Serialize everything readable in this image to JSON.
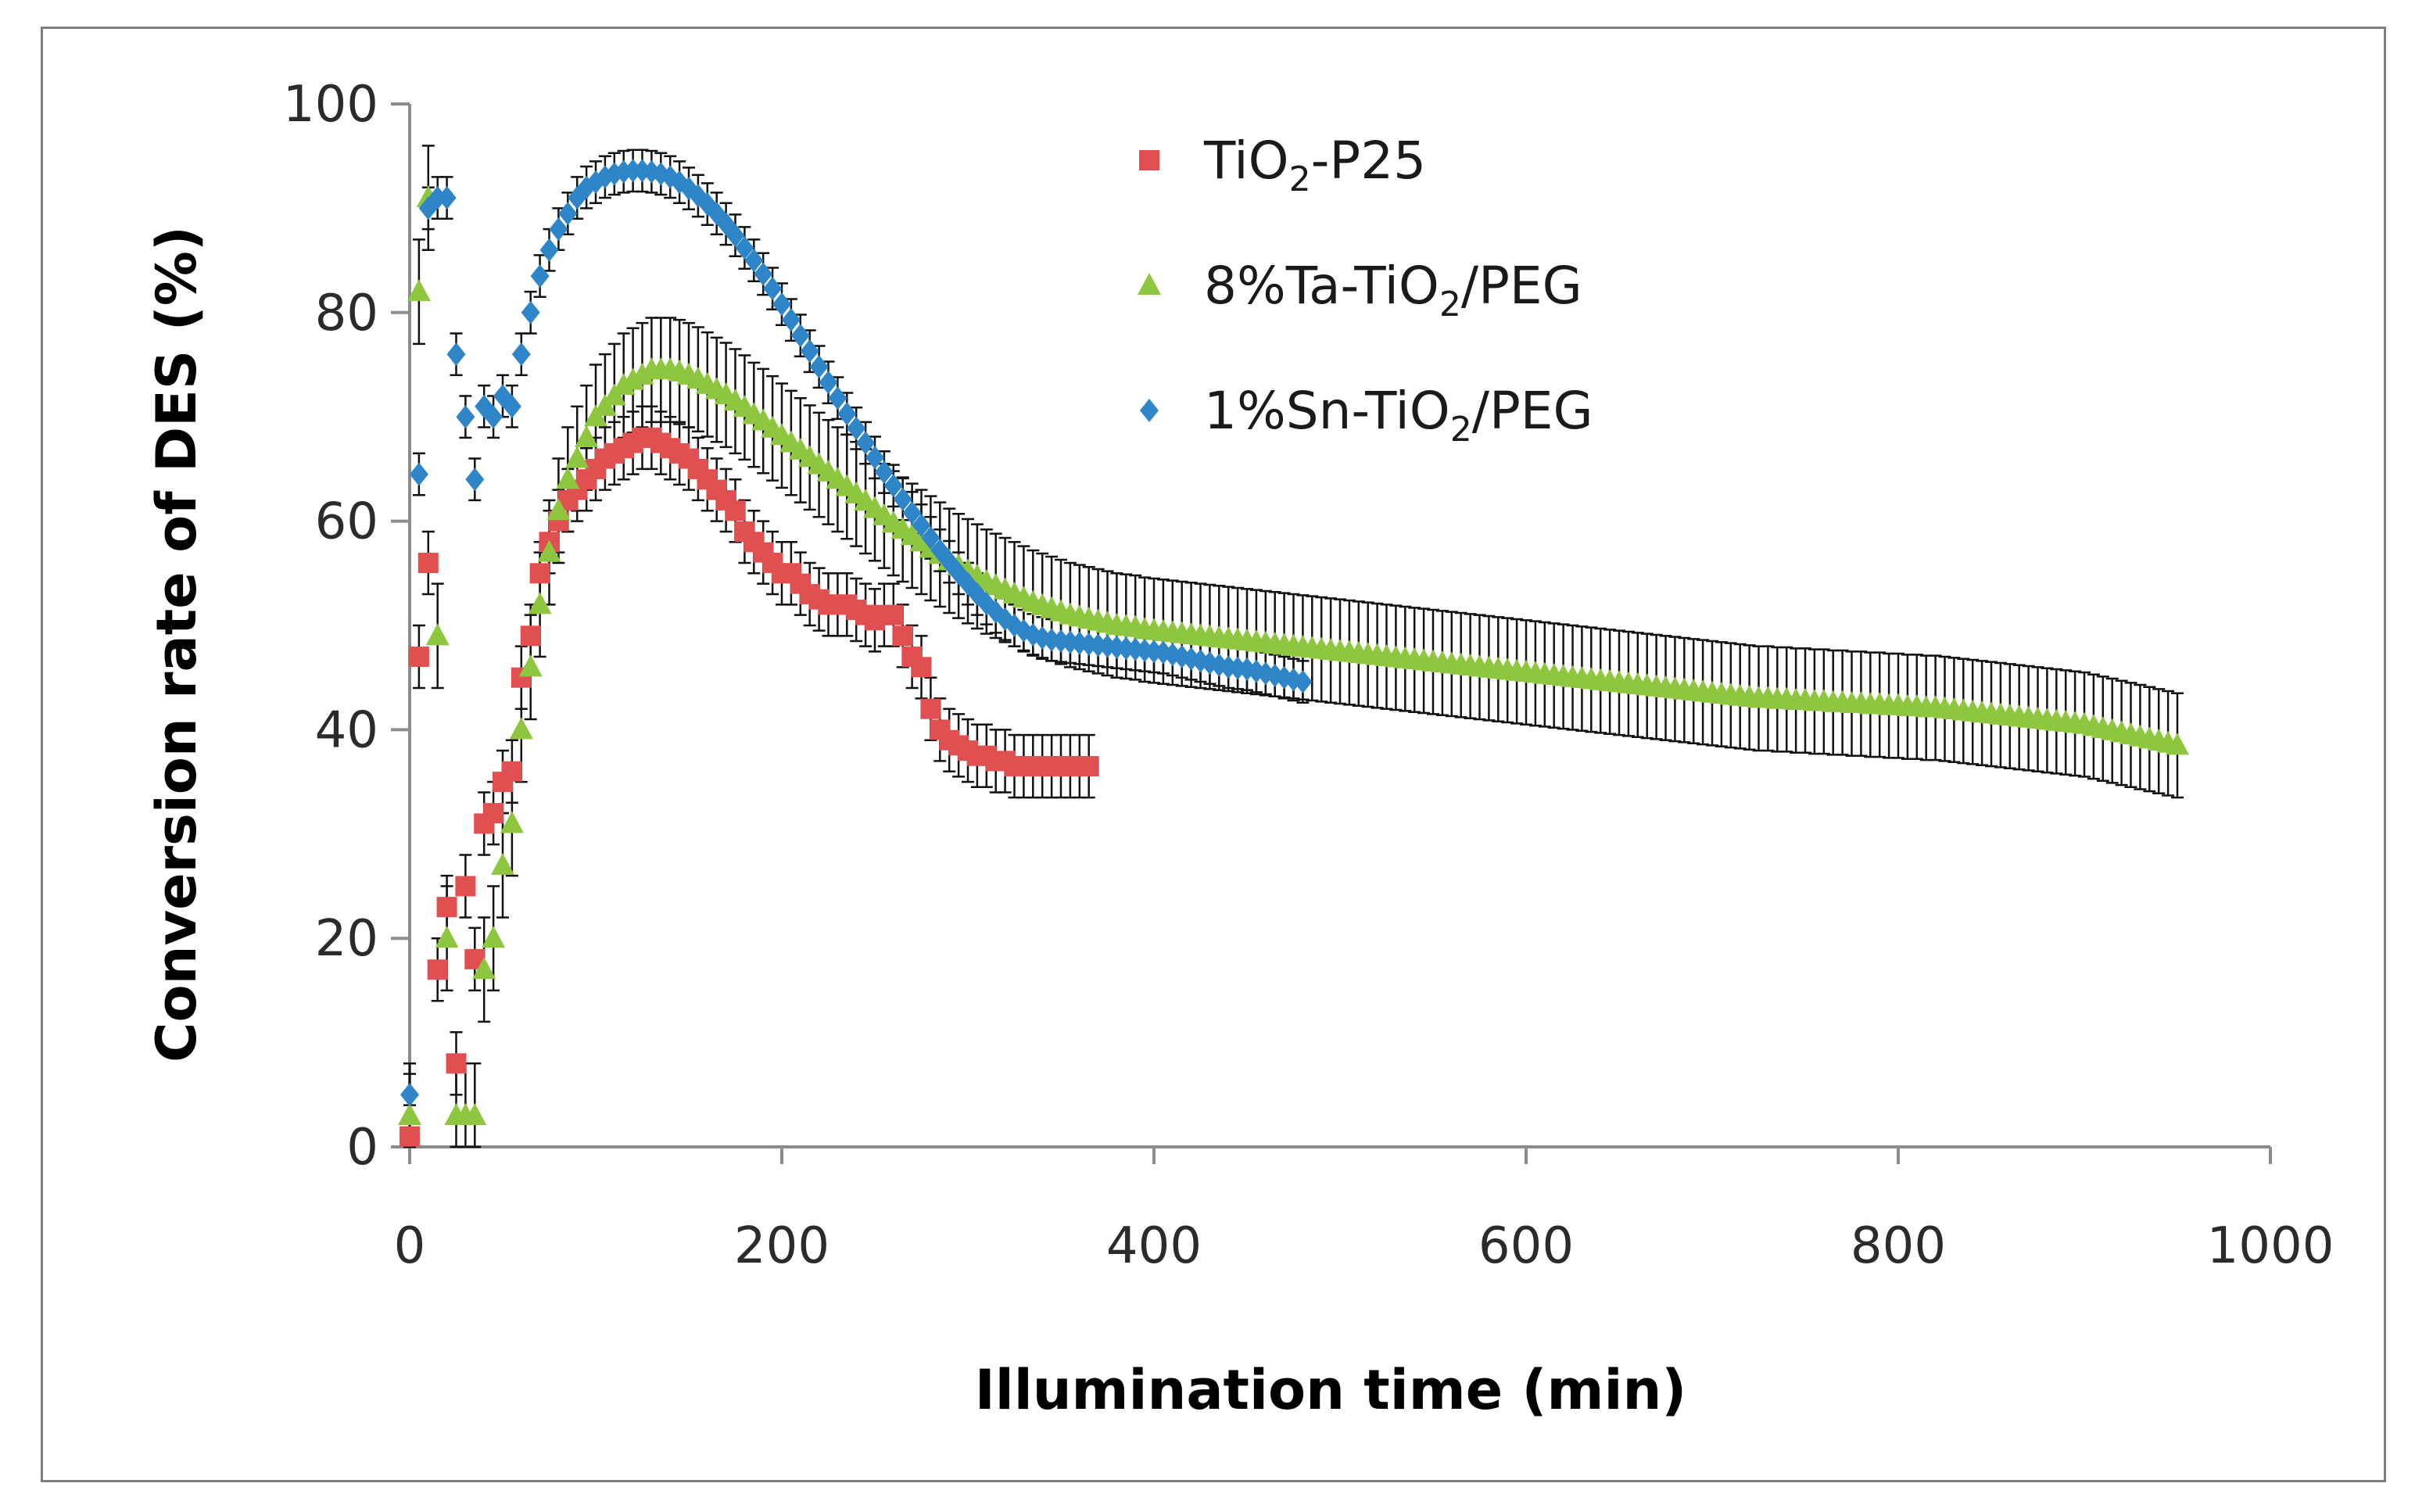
{
  "chart_data": {
    "type": "scatter",
    "title": "",
    "xlabel": "Illumination time (min)",
    "ylabel": "Conversion rate of DES (%)",
    "xlim": [
      0,
      1000
    ],
    "ylim": [
      0,
      100
    ],
    "x_ticks": [
      0,
      200,
      400,
      600,
      800,
      1000
    ],
    "y_ticks": [
      0,
      20,
      40,
      60,
      80,
      100
    ],
    "x_tick_labels": [
      "0",
      "200",
      "400",
      "600",
      "800",
      "1000"
    ],
    "y_tick_labels": [
      "0",
      "20",
      "40",
      "60",
      "80",
      "100"
    ],
    "legend_position": "top-center",
    "error_bars": true,
    "series": [
      {
        "name": "TiO2-P25",
        "legend": {
          "base": "TiO",
          "sub": "2",
          "rest": "-P25"
        },
        "color": "#e05050",
        "marker": "square",
        "err": 3,
        "x": [
          0,
          5,
          10,
          15,
          20,
          25,
          30,
          35,
          40,
          45,
          50,
          55,
          60,
          65,
          70,
          75,
          80,
          85,
          90,
          95,
          100,
          105,
          110,
          115,
          120,
          125,
          130,
          135,
          140,
          145,
          150,
          155,
          160,
          165,
          170,
          175,
          180,
          185,
          190,
          195,
          200,
          205,
          210,
          215,
          220,
          225,
          230,
          235,
          240,
          245,
          250,
          255,
          260,
          265,
          270,
          275,
          280,
          285,
          290,
          295,
          300,
          305,
          310,
          315,
          320,
          325,
          330,
          335,
          340,
          345,
          350,
          355,
          360,
          365
        ],
        "y": [
          1,
          47,
          56,
          17,
          23,
          8,
          25,
          18,
          31,
          32,
          35,
          36,
          45,
          49,
          55,
          58,
          60,
          62,
          63,
          64,
          65,
          66,
          66.5,
          67,
          67.5,
          68,
          68,
          67.5,
          67,
          66.5,
          66,
          65,
          64,
          63,
          62,
          61,
          59,
          58,
          57,
          56,
          55,
          55,
          54,
          53,
          52.5,
          52,
          52,
          52,
          51.5,
          51,
          50.5,
          51,
          51,
          49,
          47,
          46,
          42,
          40,
          39,
          38.5,
          38,
          37.5,
          37.5,
          37,
          37,
          36.5,
          36.5,
          36.5,
          36.5,
          36.5,
          36.5,
          36.5,
          36.5,
          36.5
        ]
      },
      {
        "name": "8%Ta-TiO2/PEG",
        "legend": {
          "base": "8%Ta-TiO",
          "sub": "2",
          "rest": "/PEG"
        },
        "color": "#8ec63f",
        "marker": "triangle",
        "err": 5,
        "x": [
          0,
          5,
          10,
          15,
          20,
          25,
          30,
          35,
          40,
          45,
          50,
          55,
          60,
          65,
          70,
          75,
          80,
          85,
          90,
          95,
          100,
          105,
          110,
          115,
          120,
          125,
          130,
          135,
          140,
          145,
          150,
          155,
          160,
          165,
          170,
          175,
          180,
          185,
          190,
          195,
          200,
          205,
          210,
          215,
          220,
          225,
          230,
          235,
          240,
          245,
          250,
          255,
          260,
          265,
          270,
          275,
          280,
          285,
          290,
          295,
          300,
          305,
          310,
          315,
          320,
          325,
          330,
          335,
          340,
          345,
          350,
          355,
          360,
          365,
          370,
          375,
          380,
          385,
          390,
          395,
          400,
          405,
          410,
          415,
          420,
          425,
          430,
          435,
          440,
          445,
          450,
          455,
          460,
          465,
          470,
          475,
          480,
          485,
          490,
          495,
          500,
          505,
          510,
          515,
          520,
          525,
          530,
          535,
          540,
          545,
          550,
          555,
          560,
          565,
          570,
          575,
          580,
          585,
          590,
          595,
          600,
          605,
          610,
          615,
          620,
          625,
          630,
          635,
          640,
          645,
          650,
          655,
          660,
          665,
          670,
          675,
          680,
          685,
          690,
          695,
          700,
          705,
          710,
          715,
          720,
          725,
          730,
          735,
          740,
          745,
          750,
          755,
          760,
          765,
          770,
          775,
          780,
          785,
          790,
          795,
          800,
          805,
          810,
          815,
          820,
          825,
          830,
          835,
          840,
          845,
          850,
          855,
          860,
          865,
          870,
          875,
          880,
          885,
          890,
          895,
          900,
          905,
          910,
          915,
          920,
          925,
          930,
          935,
          940,
          945,
          950
        ],
        "y": [
          3,
          82,
          91,
          49,
          20,
          3,
          3,
          3,
          17,
          20,
          27,
          31,
          40,
          46,
          52,
          57,
          61,
          64,
          66,
          68,
          70,
          71,
          72,
          73,
          73.5,
          74,
          74.5,
          74.5,
          74.5,
          74.3,
          74,
          73.6,
          73.1,
          72.6,
          72.1,
          71.5,
          70.9,
          70.2,
          69.6,
          68.9,
          68.2,
          67.5,
          66.8,
          66.1,
          65.4,
          64.7,
          64,
          63.3,
          62.6,
          61.9,
          61.2,
          60.5,
          59.8,
          59.2,
          58.6,
          58,
          57.4,
          56.8,
          56.2,
          55.7,
          55.2,
          54.7,
          54.2,
          53.8,
          53.4,
          53,
          52.6,
          52.2,
          51.9,
          51.6,
          51.3,
          51,
          50.8,
          50.6,
          50.4,
          50.2,
          50,
          49.9,
          49.8,
          49.6,
          49.5,
          49.4,
          49.3,
          49.2,
          49.1,
          49,
          48.9,
          48.8,
          48.7,
          48.6,
          48.5,
          48.4,
          48.3,
          48.2,
          48.1,
          48,
          47.9,
          47.8,
          47.7,
          47.6,
          47.5,
          47.4,
          47.3,
          47.2,
          47.1,
          47,
          46.9,
          46.8,
          46.7,
          46.6,
          46.5,
          46.4,
          46.3,
          46.2,
          46.1,
          46,
          45.9,
          45.8,
          45.7,
          45.6,
          45.5,
          45.4,
          45.3,
          45.2,
          45.1,
          45,
          44.9,
          44.8,
          44.7,
          44.6,
          44.5,
          44.4,
          44.3,
          44.2,
          44.1,
          44,
          43.9,
          43.8,
          43.7,
          43.6,
          43.5,
          43.4,
          43.3,
          43.2,
          43.1,
          43,
          43,
          42.9,
          42.9,
          42.8,
          42.8,
          42.7,
          42.7,
          42.6,
          42.6,
          42.5,
          42.5,
          42.4,
          42.4,
          42.3,
          42.3,
          42.2,
          42.2,
          42.1,
          42.1,
          42,
          41.9,
          41.8,
          41.7,
          41.6,
          41.5,
          41.4,
          41.3,
          41.2,
          41.1,
          41,
          40.9,
          40.8,
          40.7,
          40.6,
          40.5,
          40.3,
          40.1,
          39.9,
          39.7,
          39.5,
          39.3,
          39.1,
          38.9,
          38.7,
          38.5
        ]
      },
      {
        "name": "1%Sn-TiO2/PEG",
        "legend": {
          "base": "1%Sn-TiO",
          "sub": "2",
          "rest": "/PEG"
        },
        "color": "#2e86c8",
        "marker": "diamond",
        "err": 2,
        "x": [
          0,
          5,
          10,
          15,
          20,
          25,
          30,
          35,
          40,
          45,
          50,
          55,
          60,
          65,
          70,
          75,
          80,
          85,
          90,
          95,
          100,
          105,
          110,
          115,
          120,
          125,
          130,
          135,
          140,
          145,
          150,
          155,
          160,
          165,
          170,
          175,
          180,
          185,
          190,
          195,
          200,
          205,
          210,
          215,
          220,
          225,
          230,
          235,
          240,
          245,
          250,
          255,
          260,
          265,
          270,
          275,
          280,
          285,
          290,
          295,
          300,
          305,
          310,
          315,
          320,
          325,
          330,
          335,
          340,
          345,
          350,
          355,
          360,
          365,
          370,
          375,
          380,
          385,
          390,
          395,
          400,
          405,
          410,
          415,
          420,
          425,
          430,
          435,
          440,
          445,
          450,
          455,
          460,
          465,
          470,
          475,
          480
        ],
        "y": [
          5,
          64.5,
          90,
          91,
          91,
          76,
          70,
          64,
          71,
          70,
          72,
          71,
          76,
          80,
          83.5,
          86,
          88,
          89.5,
          91,
          92,
          92.5,
          93,
          93.3,
          93.5,
          93.6,
          93.6,
          93.5,
          93.3,
          93,
          92.5,
          91.9,
          91.2,
          90.4,
          89.5,
          88.5,
          87.4,
          86.2,
          85,
          83.7,
          82.3,
          80.8,
          79.3,
          77.8,
          76.3,
          74.8,
          73.3,
          71.8,
          70.3,
          68.9,
          67.5,
          66.1,
          64.7,
          63.4,
          62.1,
          60.8,
          59.6,
          58.4,
          57.2,
          56.1,
          55,
          54,
          53,
          52.1,
          51.3,
          50.6,
          50,
          49.5,
          49.1,
          48.8,
          48.6,
          48.5,
          48.4,
          48.3,
          48.2,
          48.1,
          48,
          47.9,
          47.8,
          47.7,
          47.6,
          47.5,
          47.4,
          47.2,
          47,
          46.8,
          46.6,
          46.4,
          46.2,
          46,
          45.9,
          45.8,
          45.6,
          45.4,
          45.2,
          45,
          44.8,
          44.6
        ]
      }
    ]
  }
}
